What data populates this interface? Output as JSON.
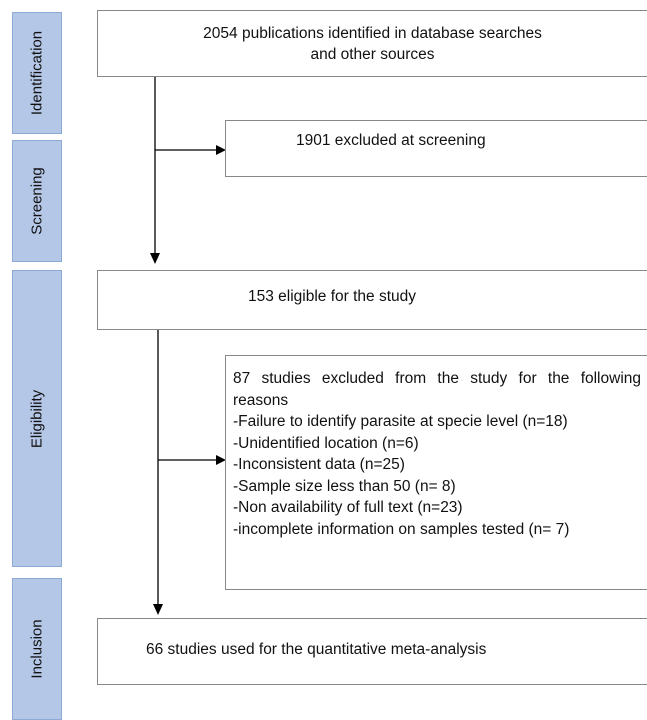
{
  "stages": [
    "Identification",
    "Screening",
    "Eligibility",
    "Inclusion"
  ],
  "boxes": {
    "identified": [
      "2054 publications identified in database searches",
      "and other sources"
    ],
    "excluded_screening": "1901 excluded at screening",
    "eligible": "153 eligible for the study",
    "excluded_eligibility": {
      "heading": "87 studies excluded from the study for the following reasons",
      "reasons": [
        "-Failure to identify parasite at specie level (n=18)",
        "-Unidentified location (n=6)",
        "-Inconsistent data (n=25)",
        "-Sample size less than 50 (n= 8)",
        "-Non availability of full text (n=23)",
        "-incomplete information on samples tested (n= 7)"
      ]
    },
    "included": "66 studies used for the quantitative meta-analysis"
  }
}
